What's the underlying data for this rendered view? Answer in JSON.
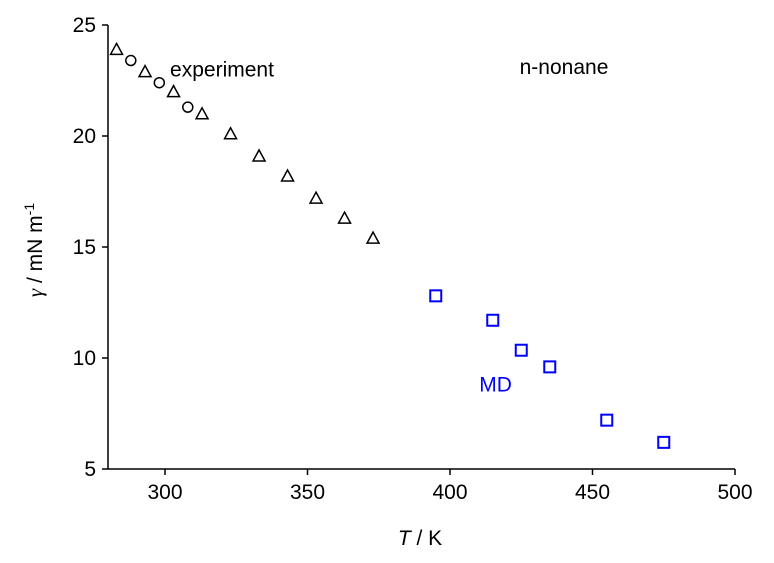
{
  "chart_data": {
    "type": "scatter",
    "xlabel": [
      "T",
      " / K"
    ],
    "ylabel": [
      "γ",
      " / mN m",
      "-1"
    ],
    "xlim": [
      280,
      500
    ],
    "xticks": [
      300,
      350,
      400,
      450,
      500
    ],
    "ylim": [
      5,
      25
    ],
    "yticks": [
      5,
      10,
      15,
      20,
      25
    ],
    "series": [
      {
        "marker": "triangle",
        "color": "#000000",
        "x": [
          283,
          293,
          303,
          313,
          323,
          333,
          343,
          353,
          363,
          373
        ],
        "y": [
          23.9,
          22.9,
          22.0,
          21.0,
          20.1,
          19.1,
          18.2,
          17.2,
          16.3,
          15.4
        ]
      },
      {
        "marker": "circle",
        "color": "#000000",
        "x": [
          288,
          298,
          308
        ],
        "y": [
          23.4,
          22.4,
          21.3
        ]
      },
      {
        "marker": "square",
        "color": "#0000ff",
        "x": [
          395,
          415,
          425,
          435,
          455,
          475
        ],
        "y": [
          12.8,
          11.7,
          10.35,
          9.6,
          7.2,
          6.2
        ]
      }
    ],
    "annotations": [
      {
        "text": "experiment",
        "x": 320,
        "y": 23.0,
        "color": "#000000"
      },
      {
        "text": "n-nonane",
        "x": 440,
        "y": 23.1,
        "color": "#000000"
      },
      {
        "text": "MD",
        "x": 416,
        "y": 8.8,
        "color": "#0000ff"
      }
    ]
  }
}
